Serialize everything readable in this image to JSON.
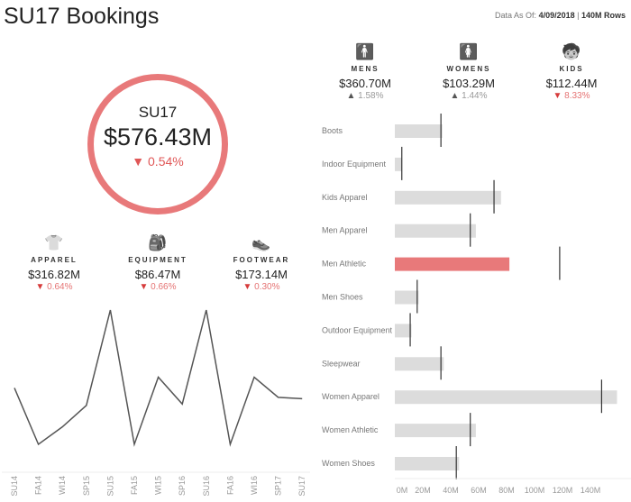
{
  "header": {
    "title": "SU17 Bookings",
    "as_of_label": "Data As Of:",
    "as_of_date": "4/09/2018",
    "rows": "140M Rows"
  },
  "total": {
    "label": "SU17",
    "value": "$576.43M",
    "change": "0.54%",
    "direction": "down"
  },
  "products": [
    {
      "name": "APPAREL",
      "icon": "tshirt-icon",
      "value": "$316.82M",
      "change": "0.64%",
      "direction": "down"
    },
    {
      "name": "EQUIPMENT",
      "icon": "backpack-icon",
      "value": "$86.47M",
      "change": "0.66%",
      "direction": "down"
    },
    {
      "name": "FOOTWEAR",
      "icon": "shoe-icon",
      "value": "$173.14M",
      "change": "0.30%",
      "direction": "down"
    }
  ],
  "segments": [
    {
      "name": "MENS",
      "icon": "man-icon",
      "value": "$360.70M",
      "change": "1.58%",
      "direction": "up"
    },
    {
      "name": "WOMENS",
      "icon": "woman-icon",
      "value": "$103.29M",
      "change": "1.44%",
      "direction": "up"
    },
    {
      "name": "KIDS",
      "icon": "child-icon",
      "value": "$112.44M",
      "change": "8.33%",
      "direction": "down"
    }
  ],
  "colors": {
    "accent": "#e8797a",
    "bar": "#dcdcdc",
    "target": "#333333",
    "line": "#555555"
  },
  "chart_data": [
    {
      "type": "line",
      "categories": [
        "SU14",
        "FA14",
        "WI14",
        "SP15",
        "SU15",
        "FA15",
        "WI15",
        "SP16",
        "SU16",
        "FA16",
        "WI16",
        "SP17",
        "SU17"
      ],
      "values": [
        42,
        0,
        13,
        29,
        100,
        0,
        50,
        30,
        100,
        0,
        50,
        35,
        34
      ],
      "grid": false
    },
    {
      "type": "bar",
      "orientation": "horizontal",
      "categories": [
        "Boots",
        "Indoor Equipment",
        "Kids Apparel",
        "Men Apparel",
        "Men Athletic",
        "Men Shoes",
        "Outdoor Equipment",
        "Sleepwear",
        "Women Apparel",
        "Women Athletic",
        "Women Shoes"
      ],
      "values": [
        34,
        5,
        76,
        58,
        82,
        17,
        12,
        35,
        159,
        58,
        46
      ],
      "targets": [
        33,
        5,
        71,
        54,
        118,
        16,
        11,
        33,
        148,
        54,
        44
      ],
      "highlight": "Men Athletic",
      "xticks": [
        "0M",
        "20M",
        "40M",
        "60M",
        "80M",
        "100M",
        "120M",
        "140M"
      ],
      "xtick_values": [
        0,
        20,
        40,
        60,
        80,
        100,
        120,
        140
      ],
      "xlim": [
        0,
        160
      ]
    }
  ]
}
